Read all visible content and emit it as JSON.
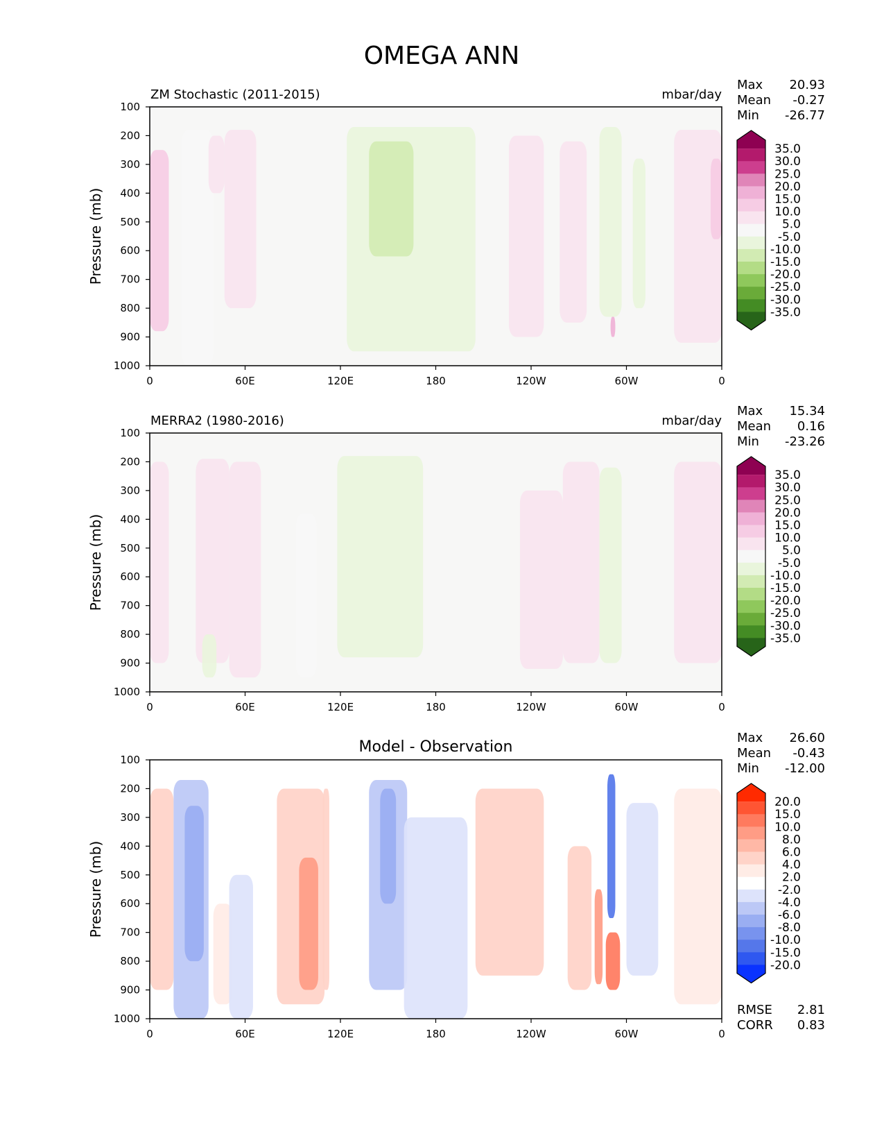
{
  "figure_title": "OMEGA ANN",
  "axis_common": {
    "ylabel": "Pressure (mb)",
    "xticks": [
      "0",
      "60E",
      "120E",
      "180",
      "120W",
      "60W",
      "0"
    ],
    "yticks": [
      "100",
      "200",
      "300",
      "400",
      "500",
      "600",
      "700",
      "800",
      "900",
      "1000"
    ]
  },
  "panels": [
    {
      "left_title": "ZM Stochastic (2011-2015)",
      "right_title": "mbar/day",
      "center_title": "",
      "stats": [
        {
          "label": "Max",
          "value": "20.93"
        },
        {
          "label": "Mean",
          "value": "-0.27"
        },
        {
          "label": "Min",
          "value": "-26.77"
        }
      ],
      "colorbar_labels": [
        "35.0",
        "30.0",
        "25.0",
        "20.0",
        "15.0",
        "10.0",
        "5.0",
        "-5.0",
        "-10.0",
        "-15.0",
        "-20.0",
        "-25.0",
        "-30.0",
        "-35.0"
      ],
      "colorbar_colors": [
        "#8e0152",
        "#b31a6c",
        "#cd3e8e",
        "#e085b8",
        "#efb1d6",
        "#f6cce4",
        "#f9e4ef",
        "#f7f7f7",
        "#e9f5dc",
        "#d2ebb3",
        "#b3dc86",
        "#8fc85c",
        "#6aab39",
        "#448c24",
        "#276419"
      ],
      "extra_stats": []
    },
    {
      "left_title": "MERRA2 (1980-2016)",
      "right_title": "mbar/day",
      "center_title": "",
      "stats": [
        {
          "label": "Max",
          "value": "15.34"
        },
        {
          "label": "Mean",
          "value": "0.16"
        },
        {
          "label": "Min",
          "value": "-23.26"
        }
      ],
      "colorbar_labels": [
        "35.0",
        "30.0",
        "25.0",
        "20.0",
        "15.0",
        "10.0",
        "5.0",
        "-5.0",
        "-10.0",
        "-15.0",
        "-20.0",
        "-25.0",
        "-30.0",
        "-35.0"
      ],
      "colorbar_colors": [
        "#8e0152",
        "#b31a6c",
        "#cd3e8e",
        "#e085b8",
        "#efb1d6",
        "#f6cce4",
        "#f9e4ef",
        "#f7f7f7",
        "#e9f5dc",
        "#d2ebb3",
        "#b3dc86",
        "#8fc85c",
        "#6aab39",
        "#448c24",
        "#276419"
      ],
      "extra_stats": []
    },
    {
      "left_title": "",
      "right_title": "",
      "center_title": "Model - Observation",
      "stats": [
        {
          "label": "Max",
          "value": "26.60"
        },
        {
          "label": "Mean",
          "value": "-0.43"
        },
        {
          "label": "Min",
          "value": "-12.00"
        }
      ],
      "colorbar_labels": [
        "20.0",
        "15.0",
        "10.0",
        "8.0",
        "6.0",
        "4.0",
        "2.0",
        "-2.0",
        "-4.0",
        "-6.0",
        "-8.0",
        "-10.0",
        "-15.0",
        "-20.0"
      ],
      "colorbar_colors": [
        "#ff2a00",
        "#ff5533",
        "#ff7a5e",
        "#ff9c85",
        "#ffb8a6",
        "#ffd3c8",
        "#ffecE6",
        "#ffffff",
        "#dde3fb",
        "#bcc8f6",
        "#9aaef2",
        "#7893ee",
        "#5577ea",
        "#2f58f0",
        "#0a33ff"
      ],
      "extra_stats": [
        {
          "label": "RMSE",
          "value": "2.81"
        },
        {
          "label": "CORR",
          "value": "0.83"
        }
      ]
    }
  ],
  "chart_data": [
    {
      "type": "heatmap",
      "title": "ZM Stochastic (2011-2015)",
      "units": "mbar/day",
      "xlabel": "",
      "ylabel": "Pressure (mb)",
      "x_range_deg": [
        0,
        360
      ],
      "ylim": [
        1000,
        100
      ],
      "features": [
        {
          "lon": [
            0,
            12
          ],
          "p": [
            250,
            880
          ],
          "value": 10
        },
        {
          "lon": [
            20,
            40
          ],
          "p": [
            180,
            1000
          ],
          "value": -5
        },
        {
          "lon": [
            37,
            47
          ],
          "p": [
            200,
            400
          ],
          "value": 6
        },
        {
          "lon": [
            47,
            67
          ],
          "p": [
            180,
            800
          ],
          "value": 6
        },
        {
          "lon": [
            124,
            205
          ],
          "p": [
            170,
            950
          ],
          "value": -7
        },
        {
          "lon": [
            138,
            166
          ],
          "p": [
            220,
            620
          ],
          "value": -12
        },
        {
          "lon": [
            226,
            248
          ],
          "p": [
            200,
            900
          ],
          "value": 6
        },
        {
          "lon": [
            258,
            275
          ],
          "p": [
            220,
            850
          ],
          "value": 6
        },
        {
          "lon": [
            283,
            297
          ],
          "p": [
            170,
            830
          ],
          "value": -10
        },
        {
          "lon": [
            290,
            293
          ],
          "p": [
            830,
            900
          ],
          "value": 15
        },
        {
          "lon": [
            304,
            312
          ],
          "p": [
            280,
            800
          ],
          "value": -6
        },
        {
          "lon": [
            330,
            360
          ],
          "p": [
            180,
            920
          ],
          "value": 7
        },
        {
          "lon": [
            353,
            360
          ],
          "p": [
            280,
            560
          ],
          "value": 10
        }
      ]
    },
    {
      "type": "heatmap",
      "title": "MERRA2 (1980-2016)",
      "units": "mbar/day",
      "xlabel": "",
      "ylabel": "Pressure (mb)",
      "x_range_deg": [
        0,
        360
      ],
      "ylim": [
        1000,
        100
      ],
      "features": [
        {
          "lon": [
            0,
            12
          ],
          "p": [
            200,
            900
          ],
          "value": 6
        },
        {
          "lon": [
            29,
            50
          ],
          "p": [
            190,
            900
          ],
          "value": 6
        },
        {
          "lon": [
            50,
            70
          ],
          "p": [
            200,
            950
          ],
          "value": 7
        },
        {
          "lon": [
            33,
            42
          ],
          "p": [
            800,
            950
          ],
          "value": -8
        },
        {
          "lon": [
            92,
            105
          ],
          "p": [
            380,
            950
          ],
          "value": -5
        },
        {
          "lon": [
            118,
            172
          ],
          "p": [
            180,
            880
          ],
          "value": -6
        },
        {
          "lon": [
            233,
            260
          ],
          "p": [
            300,
            920
          ],
          "value": 6
        },
        {
          "lon": [
            260,
            283
          ],
          "p": [
            200,
            900
          ],
          "value": 6
        },
        {
          "lon": [
            283,
            297
          ],
          "p": [
            220,
            900
          ],
          "value": -9
        },
        {
          "lon": [
            330,
            360
          ],
          "p": [
            200,
            900
          ],
          "value": 6
        }
      ]
    },
    {
      "type": "heatmap",
      "title": "Model - Observation",
      "units": "",
      "xlabel": "",
      "ylabel": "Pressure (mb)",
      "x_range_deg": [
        0,
        360
      ],
      "ylim": [
        1000,
        100
      ],
      "features": [
        {
          "lon": [
            0,
            15
          ],
          "p": [
            200,
            900
          ],
          "value": 4
        },
        {
          "lon": [
            15,
            37
          ],
          "p": [
            170,
            1000
          ],
          "value": -6
        },
        {
          "lon": [
            22,
            34
          ],
          "p": [
            260,
            800
          ],
          "value": -8
        },
        {
          "lon": [
            40,
            52
          ],
          "p": [
            600,
            950
          ],
          "value": 3
        },
        {
          "lon": [
            50,
            65
          ],
          "p": [
            500,
            1000
          ],
          "value": -4
        },
        {
          "lon": [
            80,
            110
          ],
          "p": [
            200,
            950
          ],
          "value": 4
        },
        {
          "lon": [
            94,
            106
          ],
          "p": [
            440,
            900
          ],
          "value": 9
        },
        {
          "lon": [
            109,
            113
          ],
          "p": [
            200,
            900
          ],
          "value": 4
        },
        {
          "lon": [
            138,
            162
          ],
          "p": [
            170,
            900
          ],
          "value": -5
        },
        {
          "lon": [
            145,
            155
          ],
          "p": [
            200,
            600
          ],
          "value": -7
        },
        {
          "lon": [
            160,
            200
          ],
          "p": [
            300,
            1000
          ],
          "value": -3
        },
        {
          "lon": [
            205,
            248
          ],
          "p": [
            200,
            850
          ],
          "value": 4
        },
        {
          "lon": [
            263,
            278
          ],
          "p": [
            400,
            900
          ],
          "value": 4
        },
        {
          "lon": [
            280,
            285
          ],
          "p": [
            550,
            880
          ],
          "value": 9
        },
        {
          "lon": [
            288,
            293
          ],
          "p": [
            150,
            650
          ],
          "value": -15
        },
        {
          "lon": [
            287,
            296
          ],
          "p": [
            700,
            900
          ],
          "value": 12
        },
        {
          "lon": [
            300,
            320
          ],
          "p": [
            250,
            850
          ],
          "value": -3
        },
        {
          "lon": [
            330,
            360
          ],
          "p": [
            200,
            950
          ],
          "value": 3
        }
      ],
      "rmse": 2.81,
      "corr": 0.83
    }
  ]
}
